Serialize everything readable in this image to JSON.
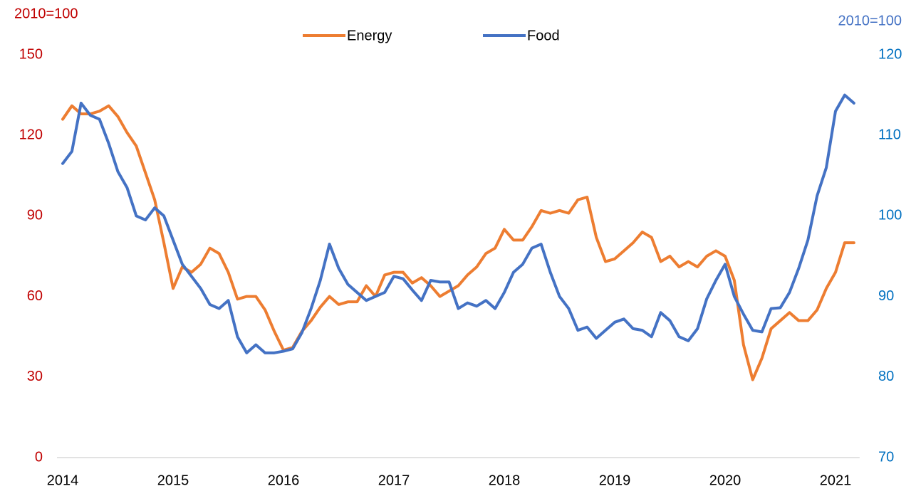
{
  "chart_data": {
    "type": "line",
    "y_label": "2010=100",
    "y2_label": "2010=100",
    "y_label_color": "#c00000",
    "y2_label_color": "#4472c4",
    "ytick_color": "#c00000",
    "y2tick_color": "#0070c0",
    "categories": [
      "2014",
      null,
      null,
      null,
      null,
      null,
      null,
      null,
      null,
      null,
      null,
      null,
      "2015",
      null,
      null,
      null,
      null,
      null,
      null,
      null,
      null,
      null,
      null,
      null,
      "2016",
      null,
      null,
      null,
      null,
      null,
      null,
      null,
      null,
      null,
      null,
      null,
      "2017",
      null,
      null,
      null,
      null,
      null,
      null,
      null,
      null,
      null,
      null,
      null,
      "2018",
      null,
      null,
      null,
      null,
      null,
      null,
      null,
      null,
      null,
      null,
      null,
      "2019",
      null,
      null,
      null,
      null,
      null,
      null,
      null,
      null,
      null,
      null,
      null,
      "2020",
      null,
      null,
      null,
      null,
      null,
      null,
      null,
      null,
      null,
      null,
      null,
      "2021",
      null,
      null
    ],
    "ylim": [
      0,
      150
    ],
    "yticks": [
      0,
      30,
      60,
      90,
      120,
      150
    ],
    "y2lim": [
      70,
      120
    ],
    "y2ticks": [
      70,
      80,
      90,
      100,
      110,
      120
    ],
    "legend": "top",
    "grid": false,
    "series": [
      {
        "name": "Energy",
        "color": "#ed7d31",
        "values": [
          126,
          131,
          128,
          128,
          129,
          131,
          127,
          121,
          116,
          106,
          96,
          80,
          63,
          71,
          69,
          72,
          78,
          76,
          69,
          59,
          60,
          60,
          55,
          47,
          40,
          41,
          47,
          51,
          56,
          60,
          57,
          58,
          58,
          64,
          60,
          68,
          69,
          69,
          65,
          67,
          64,
          60,
          62,
          64,
          68,
          71,
          76,
          78,
          85,
          81,
          81,
          86,
          92,
          91,
          92,
          91,
          96,
          97,
          82,
          73,
          74,
          77,
          80,
          84,
          82,
          73,
          75,
          71,
          73,
          71,
          75,
          77,
          75,
          66,
          42,
          29,
          37,
          48,
          51,
          54,
          51,
          51,
          55,
          63,
          69,
          80,
          80
        ]
      },
      {
        "name": "Food",
        "color": "#4472c4",
        "axis": "y2",
        "values": [
          106.5,
          108,
          114,
          112.5,
          112,
          109,
          105.5,
          103.5,
          100,
          99.5,
          101,
          100,
          97,
          94,
          92.5,
          91,
          89,
          88.5,
          89.5,
          85,
          83,
          84,
          83,
          83,
          83.2,
          83.5,
          85.5,
          88.5,
          92,
          96.5,
          93.5,
          91.5,
          90.5,
          89.5,
          90,
          90.5,
          92.5,
          92.2,
          90.8,
          89.5,
          92,
          91.8,
          91.8,
          88.5,
          89.2,
          88.8,
          89.5,
          88.5,
          90.5,
          93,
          94,
          96,
          96.5,
          93,
          90,
          88.5,
          85.8,
          86.2,
          84.8,
          85.8,
          86.8,
          87.2,
          86,
          85.8,
          85,
          88,
          87,
          85,
          84.5,
          86,
          89.7,
          92,
          94,
          90,
          87.8,
          85.8,
          85.6,
          88.5,
          88.6,
          90.5,
          93.5,
          97,
          102.5,
          106,
          113,
          115,
          114
        ]
      }
    ]
  }
}
